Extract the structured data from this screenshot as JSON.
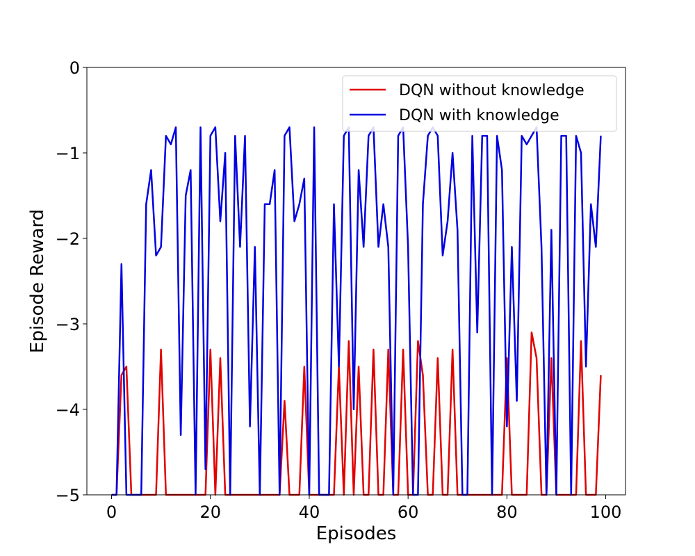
{
  "chart_data": {
    "type": "line",
    "title": "",
    "xlabel": "Episodes",
    "ylabel": "Episode Reward",
    "xlim": [
      -5,
      104
    ],
    "ylim": [
      -5,
      0
    ],
    "xticks": [
      0,
      20,
      40,
      60,
      80,
      100
    ],
    "xtick_labels": [
      "0",
      "20",
      "40",
      "60",
      "80",
      "100"
    ],
    "yticks": [
      0,
      -1,
      -2,
      -3,
      -4,
      -5
    ],
    "ytick_labels": [
      "0",
      "−1",
      "−2",
      "−3",
      "−4",
      "−5"
    ],
    "grid": false,
    "legend_position": "top-right",
    "x": [
      0,
      1,
      2,
      3,
      4,
      5,
      6,
      7,
      8,
      9,
      10,
      11,
      12,
      13,
      14,
      15,
      16,
      17,
      18,
      19,
      20,
      21,
      22,
      23,
      24,
      25,
      26,
      27,
      28,
      29,
      30,
      31,
      32,
      33,
      34,
      35,
      36,
      37,
      38,
      39,
      40,
      41,
      42,
      43,
      44,
      45,
      46,
      47,
      48,
      49,
      50,
      51,
      52,
      53,
      54,
      55,
      56,
      57,
      58,
      59,
      60,
      61,
      62,
      63,
      64,
      65,
      66,
      67,
      68,
      69,
      70,
      71,
      72,
      73,
      74,
      75,
      76,
      77,
      78,
      79,
      80,
      81,
      82,
      83,
      84,
      85,
      86,
      87,
      88,
      89,
      90,
      91,
      92,
      93,
      94,
      95,
      96,
      97,
      98,
      99
    ],
    "series": [
      {
        "name": "DQN without knowledge",
        "color": "#e00000",
        "values": [
          -5,
          -5,
          -3.6,
          -3.5,
          -5,
          -5,
          -5,
          -5,
          -5,
          -5,
          -3.3,
          -5,
          -5,
          -5,
          -5,
          -5,
          -5,
          -5,
          -5,
          -5,
          -3.3,
          -5,
          -3.4,
          -5,
          -5,
          -5,
          -5,
          -5,
          -5,
          -5,
          -5,
          -5,
          -5,
          -5,
          -5,
          -3.9,
          -5,
          -5,
          -5,
          -3.5,
          -5,
          -5,
          -5,
          -5,
          -5,
          -5,
          -3.5,
          -5,
          -3.2,
          -5,
          -3.5,
          -5,
          -5,
          -3.3,
          -5,
          -5,
          -3.3,
          -5,
          -5,
          -3.3,
          -5,
          -5,
          -3.2,
          -3.6,
          -5,
          -5,
          -3.4,
          -5,
          -5,
          -3.3,
          -5,
          -5,
          -5,
          -5,
          -5,
          -5,
          -5,
          -5,
          -5,
          -5,
          -3.4,
          -5,
          -5,
          -5,
          -5,
          -3.1,
          -3.4,
          -5,
          -5,
          -3.4,
          -5,
          -5,
          -5,
          -5,
          -5,
          -3.2,
          -5,
          -5,
          -5,
          -3.6
        ]
      },
      {
        "name": "DQN with knowledge",
        "color": "#0000e0",
        "values": [
          -5,
          -5,
          -2.3,
          -5,
          -5,
          -5,
          -5,
          -1.6,
          -1.2,
          -2.2,
          -2.1,
          -0.8,
          -0.9,
          -0.7,
          -4.3,
          -1.5,
          -1.2,
          -5,
          -0.7,
          -4.7,
          -0.8,
          -0.7,
          -1.8,
          -1.0,
          -5,
          -0.8,
          -2.1,
          -0.8,
          -4.2,
          -2.1,
          -5,
          -1.6,
          -1.6,
          -1.2,
          -5,
          -0.8,
          -0.7,
          -1.8,
          -1.6,
          -1.3,
          -5,
          -0.7,
          -5,
          -5,
          -5,
          -1.6,
          -3.5,
          -0.8,
          -0.7,
          -4.0,
          -1.2,
          -2.1,
          -0.8,
          -0.7,
          -2.1,
          -1.6,
          -2.1,
          -5,
          -0.8,
          -0.7,
          -2.1,
          -5,
          -5,
          -1.6,
          -0.8,
          -0.7,
          -0.8,
          -2.2,
          -1.8,
          -1.0,
          -1.9,
          -5,
          -5,
          -0.8,
          -3.1,
          -0.8,
          -0.8,
          -5,
          -0.8,
          -1.2,
          -4.2,
          -2.1,
          -3.9,
          -0.8,
          -0.9,
          -0.8,
          -0.7,
          -2.1,
          -5,
          -1.9,
          -5,
          -0.8,
          -0.8,
          -5,
          -0.8,
          -1.0,
          -3.5,
          -1.6,
          -2.1,
          -0.8
        ]
      }
    ]
  }
}
